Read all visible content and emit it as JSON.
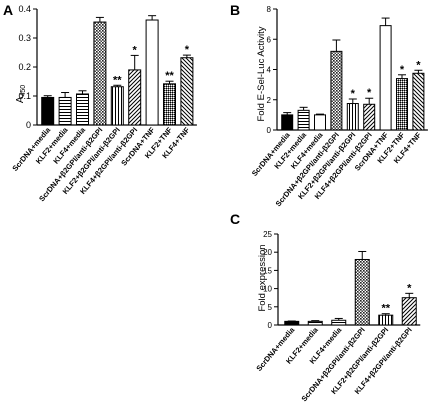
{
  "chart_data": [
    {
      "panel_label": "A",
      "type": "bar",
      "ylabel": "A",
      "ylabel_sub": "450",
      "ylim": [
        0,
        0.4
      ],
      "yticks": [
        "0",
        "0.1",
        "0.2",
        "0.3",
        "0.4"
      ],
      "categories": [
        "ScrDNA+media",
        "KLF2+media",
        "KLF4+media",
        "ScrDNA+β2GPI/anti-β2GPI",
        "KLF2+β2GPI/anti-β2GPI",
        "KLF4+β2GPI/anti-β2GPI",
        "ScrDNA+TNF",
        "KLF2+TNF",
        "KLF4+TNF"
      ],
      "values": [
        0.095,
        0.095,
        0.107,
        0.355,
        0.132,
        0.19,
        0.362,
        0.142,
        0.232
      ],
      "errors": [
        0.006,
        0.017,
        0.011,
        0.016,
        0.005,
        0.05,
        0.015,
        0.009,
        0.009
      ],
      "fills": [
        "solid",
        "hlines",
        "hlines",
        "crosshatch",
        "vlines",
        "diagright",
        "open",
        "dense",
        "diagleft"
      ],
      "annotations": [
        "",
        "",
        "",
        "",
        "**",
        "*",
        "",
        "**",
        "*"
      ]
    },
    {
      "panel_label": "B",
      "type": "bar",
      "ylabel": "Fold E-Sel-Luc Activity",
      "ylim": [
        0,
        8
      ],
      "yticks": [
        "0",
        "2",
        "4",
        "6",
        "8"
      ],
      "categories": [
        "ScrDNA+media",
        "KLF2+media",
        "KLF4+media",
        "ScrDNA+β2GPI/anti-β2GPI",
        "KLF2+β2GPI/anti-β2GPI",
        "KLF4+β2GPI/anti-β2GPI",
        "ScrDNA+TNF",
        "KLF2+TNF",
        "KLF4+TNF"
      ],
      "values": [
        1.0,
        1.3,
        1.0,
        5.2,
        1.75,
        1.7,
        6.9,
        3.4,
        3.75
      ],
      "errors": [
        0.15,
        0.2,
        0.05,
        0.75,
        0.3,
        0.4,
        0.5,
        0.25,
        0.2
      ],
      "fills": [
        "solid",
        "hlines",
        "open",
        "crosshatch",
        "vlines",
        "diagright",
        "open",
        "dense",
        "diagleft"
      ],
      "annotations": [
        "",
        "",
        "",
        "",
        "*",
        "*",
        "",
        "*",
        "*"
      ]
    },
    {
      "panel_label": "C",
      "type": "bar",
      "ylabel": "Fold expression",
      "ylim": [
        0,
        25
      ],
      "yticks": [
        "0",
        "5",
        "10",
        "15",
        "20",
        "25"
      ],
      "categories": [
        "ScrDNA+media",
        "KLF2+media",
        "KLF4+media",
        "ScrDNA+β2GPI/anti-β2GPI",
        "KLF2+β2GPI/anti-β2GPI",
        "KLF4+β2GPI/anti-β2GPI"
      ],
      "values": [
        1.0,
        1.0,
        1.3,
        18.0,
        2.7,
        7.5
      ],
      "errors": [
        0.1,
        0.2,
        0.5,
        2.2,
        0.4,
        1.2
      ],
      "fills": [
        "solid",
        "hlines",
        "hlines",
        "crosshatch",
        "vlines",
        "diagright"
      ],
      "annotations": [
        "",
        "",
        "",
        "",
        "**",
        "*"
      ]
    }
  ]
}
